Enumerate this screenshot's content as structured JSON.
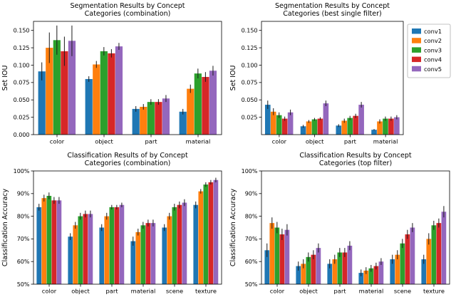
{
  "page": {
    "background": "#ffffff"
  },
  "colors": {
    "series": [
      "#1f77b4",
      "#ff7f0e",
      "#2ca02c",
      "#d62728",
      "#9467bd"
    ],
    "axis": "#000000",
    "text": "#000000",
    "error_bar": "#1a1a1a",
    "legend_border": "#b0b0b0"
  },
  "legend_entries": [
    "conv1",
    "conv2",
    "conv3",
    "conv4",
    "conv5"
  ],
  "chart_data": [
    {
      "type": "bar",
      "title_lines": [
        "Segmentation Results by Concept",
        "Categories (combination)"
      ],
      "ylabel": "Set IOU",
      "categories": [
        "color",
        "object",
        "part",
        "material"
      ],
      "ylim": [
        0,
        0.163
      ],
      "ytick_values": [
        0.0,
        0.025,
        0.05,
        0.075,
        0.1,
        0.125,
        0.15
      ],
      "ytick_labels": [
        "0.000",
        "0.025",
        "0.050",
        "0.075",
        "0.100",
        "0.125",
        "0.150"
      ],
      "legend": false,
      "series": [
        {
          "name": "conv1",
          "values": [
            0.091,
            0.08,
            0.037,
            0.033
          ],
          "errors": [
            0.013,
            0.004,
            0.004,
            0.004
          ]
        },
        {
          "name": "conv2",
          "values": [
            0.125,
            0.101,
            0.04,
            0.066
          ],
          "errors": [
            0.022,
            0.005,
            0.004,
            0.006
          ]
        },
        {
          "name": "conv3",
          "values": [
            0.136,
            0.12,
            0.047,
            0.088
          ],
          "errors": [
            0.021,
            0.006,
            0.004,
            0.007
          ]
        },
        {
          "name": "conv4",
          "values": [
            0.12,
            0.117,
            0.047,
            0.083
          ],
          "errors": [
            0.021,
            0.006,
            0.004,
            0.007
          ]
        },
        {
          "name": "conv5",
          "values": [
            0.135,
            0.127,
            0.052,
            0.092
          ],
          "errors": [
            0.022,
            0.005,
            0.005,
            0.007
          ]
        }
      ]
    },
    {
      "type": "bar",
      "title_lines": [
        "Segmentation Results by Concept",
        "Categories (best single filter)"
      ],
      "ylabel": "Set IOU",
      "categories": [
        "color",
        "object",
        "part",
        "material"
      ],
      "ylim": [
        0,
        0.163
      ],
      "ytick_values": [
        0.025,
        0.05,
        0.075,
        0.1,
        0.125,
        0.15
      ],
      "ytick_labels": [
        "0.025",
        "0.050",
        "0.075",
        "0.100",
        "0.125",
        "0.150"
      ],
      "legend": true,
      "series": [
        {
          "name": "conv1",
          "values": [
            0.043,
            0.012,
            0.013,
            0.007
          ],
          "errors": [
            0.006,
            0.002,
            0.002,
            0.001
          ]
        },
        {
          "name": "conv2",
          "values": [
            0.033,
            0.019,
            0.02,
            0.019
          ],
          "errors": [
            0.005,
            0.002,
            0.003,
            0.003
          ]
        },
        {
          "name": "conv3",
          "values": [
            0.028,
            0.022,
            0.024,
            0.023
          ],
          "errors": [
            0.004,
            0.002,
            0.003,
            0.003
          ]
        },
        {
          "name": "conv4",
          "values": [
            0.023,
            0.023,
            0.027,
            0.023
          ],
          "errors": [
            0.003,
            0.002,
            0.003,
            0.003
          ]
        },
        {
          "name": "conv5",
          "values": [
            0.032,
            0.045,
            0.043,
            0.025
          ],
          "errors": [
            0.004,
            0.004,
            0.004,
            0.003
          ]
        }
      ]
    },
    {
      "type": "bar",
      "title_lines": [
        "Classification Results of by Concept",
        "Categories (combination)"
      ],
      "ylabel": "Classification Accuracy",
      "categories": [
        "color",
        "object",
        "part",
        "material",
        "scene",
        "texture"
      ],
      "ylim": [
        50,
        100
      ],
      "ytick_values": [
        50,
        60,
        70,
        80,
        90,
        100
      ],
      "ytick_labels": [
        "50%",
        "60%",
        "70%",
        "80%",
        "90%",
        "100%"
      ],
      "legend": false,
      "series": [
        {
          "name": "conv1",
          "values": [
            84,
            71,
            75,
            69,
            75,
            85
          ],
          "errors": [
            1.5,
            1.5,
            1.5,
            2.0,
            1.5,
            1.5
          ]
        },
        {
          "name": "conv2",
          "values": [
            88,
            76,
            80,
            73,
            80,
            91
          ],
          "errors": [
            1.5,
            1.5,
            1.5,
            1.5,
            1.5,
            1.0
          ]
        },
        {
          "name": "conv3",
          "values": [
            89,
            80,
            84,
            76,
            84,
            94
          ],
          "errors": [
            1.5,
            1.5,
            1.0,
            1.5,
            1.5,
            1.0
          ]
        },
        {
          "name": "conv4",
          "values": [
            87,
            81,
            84,
            77,
            85,
            95
          ],
          "errors": [
            1.5,
            1.5,
            1.0,
            1.5,
            1.5,
            1.0
          ]
        },
        {
          "name": "conv5",
          "values": [
            87,
            81,
            85,
            77,
            86,
            96
          ],
          "errors": [
            1.5,
            1.5,
            1.0,
            1.5,
            1.5,
            1.0
          ]
        }
      ]
    },
    {
      "type": "bar",
      "title_lines": [
        "Classification Results by Concept",
        "Categories (top filter)"
      ],
      "ylabel": "Classification Accuracy",
      "categories": [
        "color",
        "object",
        "part",
        "material",
        "scene",
        "texture"
      ],
      "ylim": [
        50,
        100
      ],
      "ytick_values": [
        50,
        60,
        70,
        80,
        90,
        100
      ],
      "ytick_labels": [
        "50%",
        "60%",
        "70%",
        "80%",
        "90%",
        "100%"
      ],
      "legend": false,
      "series": [
        {
          "name": "conv1",
          "values": [
            65,
            58,
            59,
            55,
            61,
            61
          ],
          "errors": [
            3.0,
            2.0,
            2.0,
            1.5,
            2.0,
            2.0
          ]
        },
        {
          "name": "conv2",
          "values": [
            77,
            59,
            61,
            56,
            63,
            70
          ],
          "errors": [
            2.5,
            2.0,
            2.0,
            1.5,
            2.0,
            2.5
          ]
        },
        {
          "name": "conv3",
          "values": [
            75,
            62,
            64,
            57,
            68,
            76
          ],
          "errors": [
            2.5,
            2.0,
            2.0,
            1.5,
            2.0,
            2.0
          ]
        },
        {
          "name": "conv4",
          "values": [
            72,
            63,
            64,
            58,
            72,
            77
          ],
          "errors": [
            2.5,
            2.0,
            2.0,
            1.5,
            2.0,
            2.0
          ]
        },
        {
          "name": "conv5",
          "values": [
            74,
            66,
            67,
            60,
            75,
            82
          ],
          "errors": [
            2.5,
            2.0,
            2.0,
            1.5,
            2.0,
            2.5
          ]
        }
      ]
    }
  ]
}
